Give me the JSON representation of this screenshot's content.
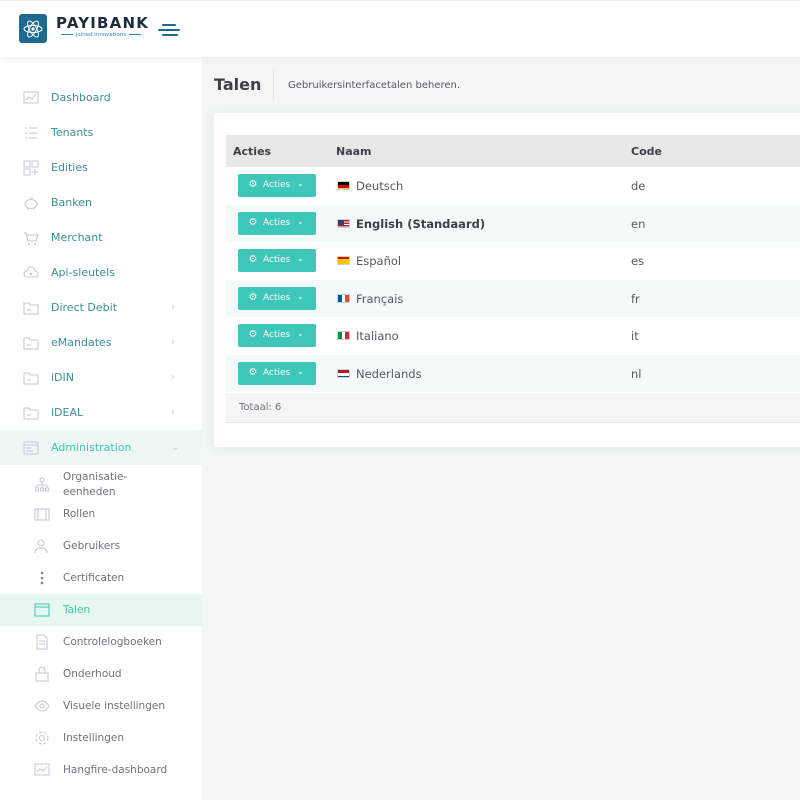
{
  "header": {
    "brand": "PAYIBANK",
    "tagline": "joined innovations",
    "colors": {
      "brand": "#1d6a8f",
      "accent": "#3ec7b8"
    }
  },
  "sidebar": {
    "items": [
      {
        "label": "Dashboard",
        "icon": "chart-line-icon"
      },
      {
        "label": "Tenants",
        "icon": "list-icon"
      },
      {
        "label": "Edities",
        "icon": "grid-icon"
      },
      {
        "label": "Banken",
        "icon": "piggy-bank-icon"
      },
      {
        "label": "Merchant",
        "icon": "shop-icon"
      },
      {
        "label": "Api-sleutels",
        "icon": "cloud-key-icon"
      },
      {
        "label": "Direct Debit",
        "icon": "folder-icon",
        "chevron": "›"
      },
      {
        "label": "eMandates",
        "icon": "folder-icon",
        "chevron": "›"
      },
      {
        "label": "iDIN",
        "icon": "folder-icon",
        "chevron": "›"
      },
      {
        "label": "iDEAL",
        "icon": "folder-icon",
        "chevron": "›"
      },
      {
        "label": "Administration",
        "icon": "window-icon",
        "chevron": "⌄"
      }
    ],
    "sub_items": [
      {
        "label": "Organisatie-eenheden",
        "icon": "sitemap-icon"
      },
      {
        "label": "Rollen",
        "icon": "suitcase-icon"
      },
      {
        "label": "Gebruikers",
        "icon": "users-icon"
      },
      {
        "label": "Certificaten",
        "icon": "more-vertical-icon"
      },
      {
        "label": "Talen",
        "icon": "browser-icon"
      },
      {
        "label": "Controlelogboeken",
        "icon": "file-icon"
      },
      {
        "label": "Onderhoud",
        "icon": "lock-icon"
      },
      {
        "label": "Visuele instellingen",
        "icon": "eye-icon"
      },
      {
        "label": "Instellingen",
        "icon": "settings-icon"
      },
      {
        "label": "Hangfire-dashboard",
        "icon": "chart-icon"
      }
    ]
  },
  "page": {
    "title": "Talen",
    "description": "Gebruikersinterfacetalen beheren."
  },
  "table": {
    "headers": [
      "Acties",
      "Naam",
      "Code"
    ],
    "action_label": "Acties",
    "rows": [
      {
        "name": "Deutsch",
        "code": "de",
        "flag": "de"
      },
      {
        "name": "English (Standaard)",
        "code": "en",
        "flag": "us"
      },
      {
        "name": "Español",
        "code": "es",
        "flag": "es"
      },
      {
        "name": "Français",
        "code": "fr",
        "flag": "fr"
      },
      {
        "name": "Italiano",
        "code": "it",
        "flag": "it"
      },
      {
        "name": "Nederlands",
        "code": "nl",
        "flag": "nl"
      }
    ],
    "footer": "Totaal: 6"
  }
}
